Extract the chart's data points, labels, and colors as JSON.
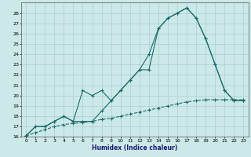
{
  "xlabel": "Humidex (Indice chaleur)",
  "bg_color": "#cce8e8",
  "grid_color": "#aacfcf",
  "line_color": "#1a6b6b",
  "xlim": [
    -0.5,
    23.5
  ],
  "ylim": [
    16,
    29
  ],
  "xticks": [
    0,
    1,
    2,
    3,
    4,
    5,
    6,
    7,
    8,
    9,
    10,
    11,
    12,
    13,
    14,
    15,
    16,
    17,
    18,
    19,
    20,
    21,
    22,
    23
  ],
  "yticks": [
    16,
    17,
    18,
    19,
    20,
    21,
    22,
    23,
    24,
    25,
    26,
    27,
    28
  ],
  "line1_x": [
    0,
    1,
    2,
    3,
    4,
    5,
    6,
    7,
    8,
    9,
    10,
    11,
    12,
    13,
    14,
    15,
    16,
    17,
    18,
    19,
    20,
    21,
    22,
    23
  ],
  "line1_y": [
    16.1,
    17.0,
    17.0,
    17.5,
    18.0,
    17.5,
    17.5,
    17.5,
    18.5,
    19.5,
    20.5,
    21.5,
    22.5,
    24.0,
    26.5,
    27.5,
    28.0,
    28.5,
    27.5,
    25.5,
    23.0,
    20.5,
    19.5,
    19.5
  ],
  "line2_x": [
    0,
    1,
    2,
    3,
    4,
    5,
    6,
    7,
    8,
    9,
    10,
    11,
    12,
    13,
    14,
    15,
    16,
    17,
    18,
    19,
    20,
    21,
    22,
    23
  ],
  "line2_y": [
    16.1,
    17.0,
    17.0,
    17.5,
    18.0,
    17.5,
    20.5,
    20.0,
    20.5,
    19.5,
    20.5,
    21.5,
    22.5,
    22.5,
    26.5,
    27.5,
    28.0,
    28.5,
    27.5,
    25.5,
    23.0,
    20.5,
    19.5,
    19.5
  ],
  "line3_x": [
    0,
    1,
    2,
    3,
    4,
    5,
    6,
    7,
    8,
    9,
    10,
    11,
    12,
    13,
    14,
    15,
    16,
    17,
    18,
    19,
    20,
    21,
    22,
    23
  ],
  "line3_y": [
    16.1,
    16.4,
    16.7,
    17.0,
    17.2,
    17.3,
    17.4,
    17.5,
    17.7,
    17.8,
    18.0,
    18.2,
    18.4,
    18.6,
    18.8,
    19.0,
    19.2,
    19.4,
    19.5,
    19.6,
    19.6,
    19.6,
    19.6,
    19.6
  ]
}
